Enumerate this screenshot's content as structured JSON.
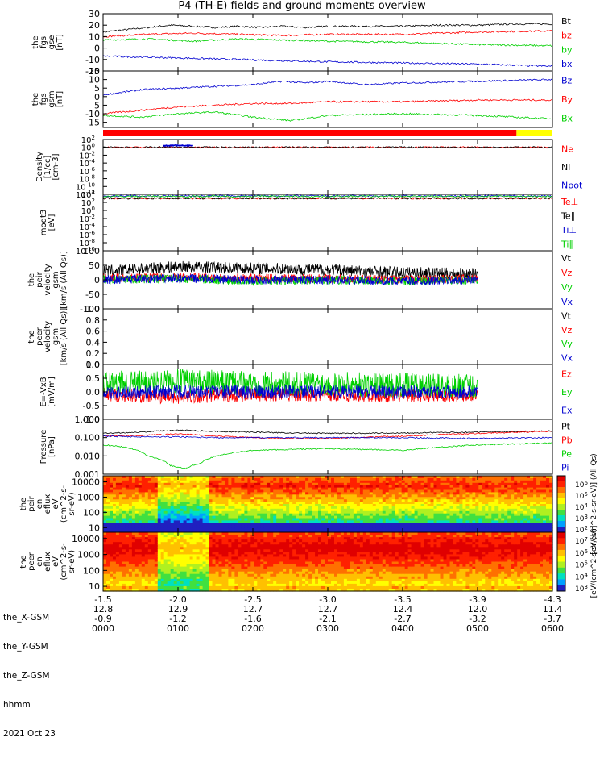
{
  "title": "P4 (TH-E) fields and ground moments overview",
  "footer": {
    "date": "2021 Oct 23",
    "ephemeris": [
      {
        "label": "the_X-GSM",
        "values": [
          "-1.5",
          "-2.0",
          "-2.5",
          "-3.0",
          "-3.5",
          "-3.9",
          "-4.3"
        ]
      },
      {
        "label": "the_Y-GSM",
        "values": [
          "12.8",
          "12.9",
          "12.7",
          "12.7",
          "12.4",
          "12.0",
          "11.4"
        ]
      },
      {
        "label": "the_Z-GSM",
        "values": [
          "-0.9",
          "-1.2",
          "-1.6",
          "-2.1",
          "-2.7",
          "-3.2",
          "-3.7"
        ]
      },
      {
        "label": "hhmm",
        "values": [
          "0000",
          "0100",
          "0200",
          "0300",
          "0400",
          "0500",
          "0600"
        ]
      }
    ]
  },
  "colors": {
    "black": "#000000",
    "red": "#ff0000",
    "green": "#00d000",
    "blue": "#0000d0",
    "yellow": "#ffff00"
  },
  "chart_data": [
    {
      "type": "line",
      "ylabel": [
        "the",
        "fgs",
        "gse",
        "[nT]"
      ],
      "ylim": [
        -20,
        30
      ],
      "yticks": [
        "-20",
        "-10",
        "0",
        "10",
        "20",
        "30"
      ],
      "x_hours": [
        0,
        1,
        2,
        3,
        4,
        5,
        6
      ],
      "series": [
        {
          "name": "Bt",
          "color": "#000000",
          "x": [
            0,
            0.3,
            0.6,
            0.9,
            1.2,
            1.5,
            1.8,
            2.1,
            2.4,
            2.7,
            3.0,
            3.5,
            4.0,
            4.5,
            5.0,
            5.5,
            6.0
          ],
          "y": [
            14,
            16,
            18,
            20,
            19,
            18,
            19,
            18,
            19,
            18,
            19,
            19,
            19,
            20,
            20,
            21,
            21
          ]
        },
        {
          "name": "bz",
          "color": "#ff0000",
          "x": [
            0,
            0.6,
            1.2,
            1.8,
            2.4,
            3.0,
            4.0,
            5.0,
            6.0
          ],
          "y": [
            10,
            12,
            13,
            12,
            11,
            12,
            12,
            14,
            15
          ]
        },
        {
          "name": "by",
          "color": "#00d000",
          "x": [
            0,
            0.6,
            1.2,
            1.8,
            2.4,
            3.0,
            4.0,
            5.0,
            6.0
          ],
          "y": [
            7,
            8,
            6,
            8,
            7,
            6,
            5,
            3,
            2
          ]
        },
        {
          "name": "bx",
          "color": "#0000d0",
          "x": [
            0,
            0.6,
            1.2,
            1.8,
            2.4,
            3.0,
            4.0,
            5.0,
            6.0
          ],
          "y": [
            -7,
            -8,
            -9,
            -10,
            -11,
            -12,
            -13,
            -14,
            -16
          ]
        }
      ]
    },
    {
      "type": "line",
      "ylabel": [
        "the",
        "fgs",
        "gsm",
        "[nT]"
      ],
      "ylim": [
        -18,
        15
      ],
      "yticks": [
        "-15",
        "-10",
        "-5",
        "0",
        "5",
        "10",
        "15"
      ],
      "series": [
        {
          "name": "Bz",
          "color": "#0000d0",
          "x": [
            0,
            0.5,
            1.0,
            1.5,
            2.0,
            2.4,
            2.7,
            3.0,
            3.5,
            4.0,
            5.0,
            6.0
          ],
          "y": [
            1,
            4,
            5,
            6,
            7,
            9,
            8,
            9,
            7,
            8,
            9,
            10
          ]
        },
        {
          "name": "By",
          "color": "#ff0000",
          "x": [
            0,
            0.5,
            1.0,
            1.5,
            2.0,
            2.5,
            3.0,
            4.0,
            5.0,
            6.0
          ],
          "y": [
            -10,
            -8,
            -6,
            -5,
            -4,
            -4,
            -3,
            -3,
            -2,
            -2
          ]
        },
        {
          "name": "Bx",
          "color": "#00d000",
          "x": [
            0,
            0.5,
            1.0,
            1.5,
            2.0,
            2.5,
            3.0,
            4.0,
            5.0,
            6.0
          ],
          "y": [
            -11,
            -12,
            -10,
            -9,
            -12,
            -14,
            -11,
            -10,
            -11,
            -13
          ]
        }
      ]
    },
    {
      "type": "line",
      "ylabel": [
        "Density",
        "[1/cc]",
        "[cm-3]"
      ],
      "ylim": [
        -12,
        2
      ],
      "ytick_labels": [
        {
          "m": "10",
          "e": "2"
        },
        {
          "m": "10",
          "e": "0"
        },
        {
          "m": "10",
          "e": "-2"
        },
        {
          "m": "10",
          "e": "-4"
        },
        {
          "m": "10",
          "e": "-6"
        },
        {
          "m": "10",
          "e": "-8"
        },
        {
          "m": "10",
          "e": "-10"
        },
        {
          "m": "10",
          "e": "-12"
        }
      ],
      "series": [
        {
          "name": "Ne",
          "color": "#ff0000",
          "x": [
            0,
            1.0,
            2.0,
            3.0,
            4.0,
            5.0,
            6.0
          ],
          "y": [
            0,
            0,
            0,
            0,
            0,
            0,
            0
          ]
        },
        {
          "name": "Ni",
          "color": "#000000",
          "x": [
            0,
            1.0,
            2.0,
            3.0,
            4.0,
            5.0,
            6.0
          ],
          "y": [
            0,
            0,
            0,
            0,
            0,
            0,
            0
          ]
        },
        {
          "name": "Npot",
          "color": "#0000d0",
          "x": [
            0.8,
            1.0,
            1.2
          ],
          "y": [
            0.4,
            0.5,
            0.4
          ]
        }
      ]
    },
    {
      "type": "line",
      "ylabel": [
        "moqt3",
        "[eV]"
      ],
      "ylim": [
        -10,
        4
      ],
      "ytick_labels": [
        {
          "m": "10",
          "e": "4"
        },
        {
          "m": "10",
          "e": "2"
        },
        {
          "m": "10",
          "e": "0"
        },
        {
          "m": "10",
          "e": "-2"
        },
        {
          "m": "10",
          "e": "-4"
        },
        {
          "m": "10",
          "e": "-6"
        },
        {
          "m": "10",
          "e": "-8"
        },
        {
          "m": "10",
          "e": "-10"
        }
      ],
      "series": [
        {
          "name": "Te⊥",
          "color": "#ff0000",
          "x": [
            0,
            1.0,
            2.0,
            3.0,
            4.0,
            5.0,
            6.0
          ],
          "y": [
            3,
            3,
            3,
            3,
            3,
            3,
            3
          ]
        },
        {
          "name": "Te∥",
          "color": "#000000",
          "x": [
            0,
            1.0,
            2.0,
            3.0,
            4.0,
            5.0,
            6.0
          ],
          "y": [
            3,
            3,
            3,
            3,
            3,
            3,
            3
          ]
        },
        {
          "name": "Ti⊥",
          "color": "#0000d0",
          "x": [
            0,
            1.0,
            2.0,
            3.0,
            4.0,
            5.0,
            6.0
          ],
          "y": [
            3.6,
            3.6,
            3.6,
            3.6,
            3.6,
            3.6,
            3.6
          ]
        },
        {
          "name": "Ti∥",
          "color": "#00d000",
          "x": [
            0,
            1.0,
            2.0,
            3.0,
            4.0,
            5.0,
            6.0
          ],
          "y": [
            3.5,
            3.5,
            3.5,
            3.5,
            3.5,
            3.5,
            3.5
          ]
        }
      ]
    },
    {
      "type": "line",
      "ylabel": [
        "the",
        "peir",
        "velocity",
        "gsm",
        "[km/s (All Qs)]"
      ],
      "ylim": [
        -100,
        100
      ],
      "yticks": [
        "-100",
        "-50",
        "0",
        "50",
        "100"
      ],
      "data_end_hour": 5.45,
      "series": [
        {
          "name": "Vt",
          "color": "#000000",
          "x": [
            0,
            1,
            2,
            3,
            4,
            5
          ],
          "y": [
            30,
            45,
            40,
            35,
            25,
            20
          ]
        },
        {
          "name": "Vz",
          "color": "#ff0000",
          "x": [
            0,
            1,
            2,
            3,
            4,
            5
          ],
          "y": [
            5,
            10,
            5,
            5,
            0,
            5
          ]
        },
        {
          "name": "Vy",
          "color": "#00d000",
          "x": [
            0,
            1,
            2,
            3,
            4,
            5
          ],
          "y": [
            0,
            5,
            -5,
            0,
            -5,
            0
          ]
        },
        {
          "name": "Vx",
          "color": "#0000d0",
          "x": [
            0,
            1,
            2,
            3,
            4,
            5
          ],
          "y": [
            0,
            5,
            0,
            0,
            -5,
            0
          ]
        }
      ]
    },
    {
      "type": "line",
      "ylabel": [
        "the",
        "peer",
        "velocity",
        "gsm",
        "[km/s (All Qs)]"
      ],
      "ylim": [
        0,
        1
      ],
      "yticks": [
        "0.0",
        "0.2",
        "0.4",
        "0.6",
        "0.8",
        "1.0"
      ],
      "series": [
        {
          "name": "Vt",
          "color": "#000000",
          "x": [],
          "y": []
        },
        {
          "name": "Vz",
          "color": "#ff0000",
          "x": [],
          "y": []
        },
        {
          "name": "Vy",
          "color": "#00d000",
          "x": [],
          "y": []
        },
        {
          "name": "Vx",
          "color": "#0000d0",
          "x": [],
          "y": []
        }
      ]
    },
    {
      "type": "line",
      "ylabel": [
        "E=-VxB",
        "[mV/m]"
      ],
      "ylim": [
        -1,
        1
      ],
      "yticks": [
        "-1.0",
        "-0.5",
        "0.0",
        "0.5",
        "1.0"
      ],
      "data_end_hour": 5.45,
      "series": [
        {
          "name": "Ez",
          "color": "#ff0000",
          "x": [
            0,
            1,
            2,
            3,
            4,
            5
          ],
          "y": [
            -0.1,
            -0.2,
            -0.1,
            -0.1,
            -0.15,
            -0.1
          ]
        },
        {
          "name": "Ey",
          "color": "#00d000",
          "x": [
            0,
            1,
            2,
            3,
            4,
            5
          ],
          "y": [
            0.3,
            0.4,
            0.3,
            0.3,
            0.25,
            0.2
          ]
        },
        {
          "name": "Ex",
          "color": "#0000d0",
          "x": [
            0,
            1,
            2,
            3,
            4,
            5
          ],
          "y": [
            0,
            0,
            0,
            0,
            0,
            0
          ]
        }
      ]
    },
    {
      "type": "line",
      "ylabel": [
        "Pressure",
        "[nPa]"
      ],
      "ylim": [
        0.001,
        1
      ],
      "log": true,
      "yticks": [
        "0.001",
        "0.010",
        "0.100",
        "1.000"
      ],
      "series": [
        {
          "name": "Pt",
          "color": "#000000",
          "x": [
            0,
            0.5,
            1.0,
            1.5,
            2.0,
            2.5,
            3.0,
            4.0,
            5.0,
            6.0
          ],
          "y": [
            0.17,
            0.2,
            0.26,
            0.22,
            0.2,
            0.18,
            0.17,
            0.18,
            0.2,
            0.23
          ]
        },
        {
          "name": "Pb",
          "color": "#ff0000",
          "x": [
            0,
            0.5,
            1.0,
            1.5,
            2.0,
            2.5,
            3.0,
            4.0,
            5.0,
            6.0
          ],
          "y": [
            0.12,
            0.13,
            0.16,
            0.12,
            0.1,
            0.09,
            0.09,
            0.12,
            0.17,
            0.22
          ]
        },
        {
          "name": "Pe",
          "color": "#00d000",
          "x": [
            0,
            0.3,
            0.6,
            0.9,
            1.1,
            1.3,
            1.6,
            2.0,
            3.0,
            4.0,
            5.0,
            6.0
          ],
          "y": [
            0.04,
            0.03,
            0.01,
            0.003,
            0.002,
            0.004,
            0.012,
            0.02,
            0.025,
            0.02,
            0.04,
            0.05
          ]
        },
        {
          "name": "Pi",
          "color": "#0000d0",
          "x": [
            0,
            0.5,
            1.0,
            1.5,
            2.0,
            3.0,
            4.0,
            5.0,
            6.0
          ],
          "y": [
            0.12,
            0.11,
            0.11,
            0.1,
            0.1,
            0.1,
            0.1,
            0.09,
            0.1
          ]
        }
      ]
    },
    {
      "type": "heatmap",
      "ylabel": [
        "the",
        "peir",
        "en",
        "eflux",
        "eV",
        "(cm^2-s-",
        "sr-eV)"
      ],
      "yticks": [
        "10",
        "100",
        "1000",
        "10000"
      ],
      "ylim": [
        5,
        25000
      ],
      "colorbar_label": "[eV/(cm^2-s-sr-eV)] (All Qs)",
      "colorbar_ticks": [
        {
          "m": "10",
          "e": "6"
        },
        {
          "m": "10",
          "e": "5"
        },
        {
          "m": "10",
          "e": "4"
        },
        {
          "m": "10",
          "e": "3"
        },
        {
          "m": "10",
          "e": "2"
        }
      ]
    },
    {
      "type": "heatmap",
      "ylabel": [
        "the",
        "peer",
        "en",
        "eflux",
        "eV",
        "(cm^2-s-",
        "sr-eV)"
      ],
      "yticks": [
        "10",
        "100",
        "1000",
        "10000"
      ],
      "ylim": [
        5,
        25000
      ],
      "colorbar_label": "[eV/(cm^2-s-sr-eV)]",
      "colorbar_ticks": [
        {
          "m": "10",
          "e": "7"
        },
        {
          "m": "10",
          "e": "6"
        },
        {
          "m": "10",
          "e": "5"
        },
        {
          "m": "10",
          "e": "4"
        },
        {
          "m": "10",
          "e": "3"
        }
      ]
    }
  ]
}
